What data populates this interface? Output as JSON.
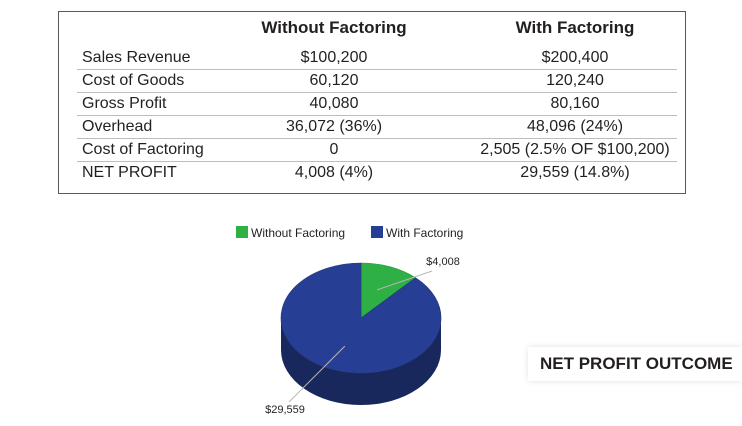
{
  "table": {
    "columns": [
      "",
      "Without Factoring",
      "With Factoring"
    ],
    "rows": [
      {
        "label": "Sales Revenue",
        "without": "$100,200",
        "with": "$200,400"
      },
      {
        "label": "Cost of Goods",
        "without": "60,120",
        "with": "120,240"
      },
      {
        "label": "Gross Profit",
        "without": "40,080",
        "with": "80,160"
      },
      {
        "label": "Overhead",
        "without": "36,072 (36%)",
        "with": "48,096 (24%)"
      },
      {
        "label": "Cost of Factoring",
        "without": "0",
        "with": "2,505 (2.5% OF $100,200)"
      },
      {
        "label": "NET PROFIT",
        "without": "4,008 (4%)",
        "with": "29,559 (14.8%)"
      }
    ]
  },
  "chart_data": {
    "type": "pie",
    "title": "NET PROFIT OUTCOME",
    "categories": [
      "Without Factoring",
      "With Factoring"
    ],
    "values": [
      4008,
      29559
    ],
    "data_labels": [
      "$4,008",
      "$29,559"
    ],
    "colors": [
      "#2eb045",
      "#263f94"
    ],
    "legend_position": "top"
  }
}
